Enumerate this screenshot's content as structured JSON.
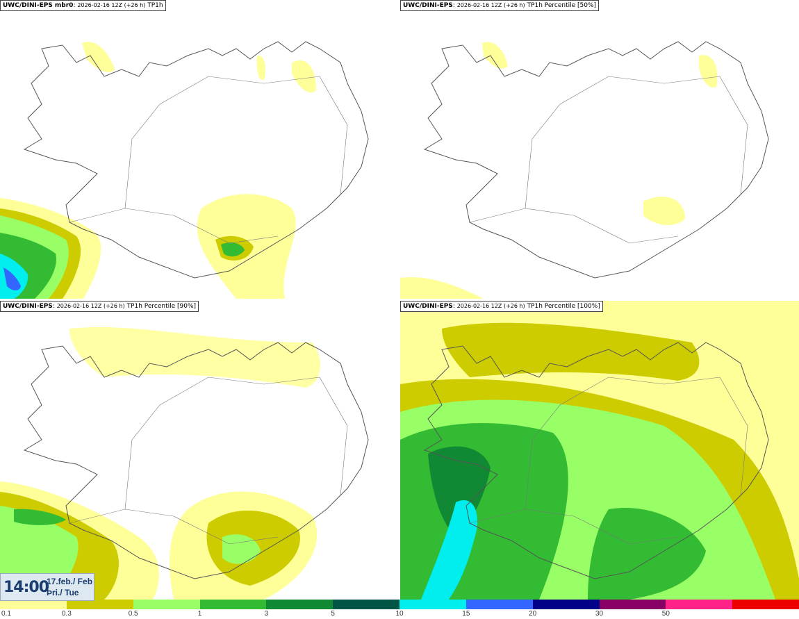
{
  "panels": [
    {
      "model": "UWC/DINI-EPS mbr0",
      "run": "2026-02-16 12Z (+26 h)",
      "field": "TP1h"
    },
    {
      "model": "UWC/DINI-EPS",
      "run": "2026-02-16 12Z (+26 h)",
      "field": "TP1h Percentile [50%]"
    },
    {
      "model": "UWC/DINI-EPS",
      "run": "2026-02-16 12Z (+26 h)",
      "field": "TP1h Percentile [90%]"
    },
    {
      "model": "UWC/DINI-EPS",
      "run": "2026-02-16 12Z (+26 h)",
      "field": "TP1h Percentile [100%]"
    }
  ],
  "time": {
    "clock": "14:00",
    "date_line1": "17.feb./ Feb",
    "date_line2": "Þri./ Tue"
  },
  "colorbar": {
    "labels": [
      "0.1",
      "0.3",
      "0.5",
      "1",
      "3",
      "5",
      "10",
      "15",
      "20",
      "30",
      "50"
    ],
    "colors": [
      "#ffff99",
      "#cccc00",
      "#99ff66",
      "#33bb33",
      "#118833",
      "#005544",
      "#00eeee",
      "#3366ff",
      "#000088",
      "#880066",
      "#ff2288",
      "#ee0000"
    ]
  }
}
